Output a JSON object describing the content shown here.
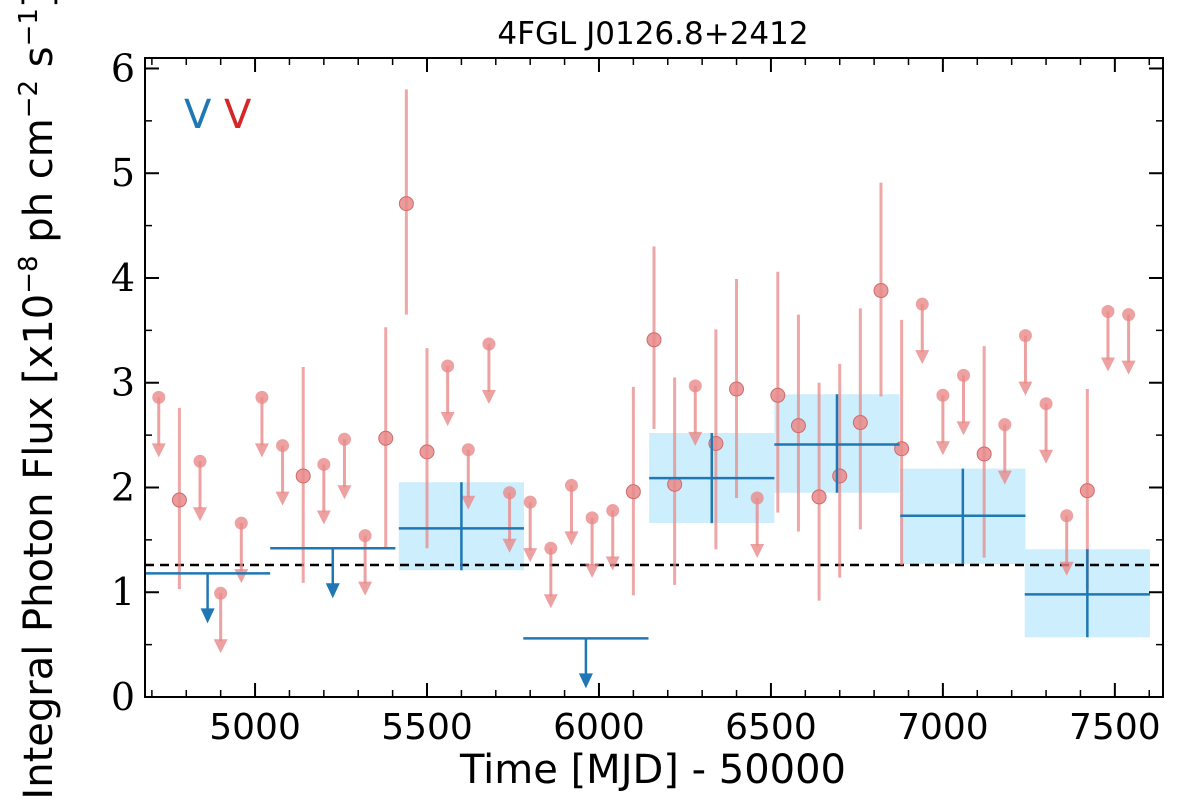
{
  "chart_data": {
    "type": "scatter",
    "title": "4FGL J0126.8+2412",
    "xlabel": "Time [MJD] - 50000",
    "ylabel": "Integral Photon Flux [x10^{-8} ph cm^{-2} s^{-1}]",
    "ylabel_main": "Integral Photon Flux [x10",
    "ylabel_exp1": "−8",
    "ylabel_mid": " ph cm",
    "ylabel_exp2": "−2",
    "ylabel_mid2": " s",
    "ylabel_exp3": "−1",
    "ylabel_end": "]",
    "xlim": [
      4680,
      7640
    ],
    "ylim": [
      0,
      6.1
    ],
    "x_ticks": [
      5000,
      5500,
      6000,
      6500,
      7000,
      7500
    ],
    "x_tick_labels": [
      "5000",
      "5500",
      "6000",
      "6500",
      "7000",
      "7500"
    ],
    "y_ticks": [
      0,
      1,
      2,
      3,
      4,
      5,
      6
    ],
    "y_tick_labels": [
      "0",
      "1",
      "2",
      "3",
      "4",
      "5",
      "6"
    ],
    "legend": {
      "placement": "top-left",
      "entries": [
        {
          "label": "V",
          "color": "#1f77b4"
        },
        {
          "label": "V",
          "color": "#d62728"
        }
      ]
    },
    "reference_line": {
      "y": 1.26,
      "style": "dashed",
      "color": "#000000"
    },
    "colors": {
      "wide_bins": "#1f77b4",
      "wide_band_fill": "#cdeefc",
      "narrow_bins": "#e88a8a"
    },
    "series": [
      {
        "bin_width": "wide",
        "points": [
          {
            "x": 4862,
            "x_half_width": 182,
            "upper_limit": 1.18
          },
          {
            "x": 5226,
            "x_half_width": 182,
            "upper_limit": 1.42
          },
          {
            "x": 5600,
            "x_half_width": 182,
            "y": 1.61,
            "y_low": 1.21,
            "y_high": 2.05
          },
          {
            "x": 5962,
            "x_half_width": 182,
            "upper_limit": 0.56
          },
          {
            "x": 6328,
            "x_half_width": 182,
            "y": 2.09,
            "y_low": 1.66,
            "y_high": 2.52
          },
          {
            "x": 6692,
            "x_half_width": 182,
            "y": 2.41,
            "y_low": 1.95,
            "y_high": 2.89
          },
          {
            "x": 7058,
            "x_half_width": 182,
            "y": 1.73,
            "y_low": 1.27,
            "y_high": 2.18
          },
          {
            "x": 7420,
            "x_half_width": 182,
            "y": 0.98,
            "y_low": 0.57,
            "y_high": 1.41
          }
        ]
      },
      {
        "bin_width": "narrow",
        "points": [
          {
            "x": 4720,
            "upper_limit": 2.86
          },
          {
            "x": 4780,
            "y": 1.88,
            "y_low": 1.03,
            "y_high": 2.76
          },
          {
            "x": 4840,
            "upper_limit": 2.25
          },
          {
            "x": 4900,
            "upper_limit": 0.99
          },
          {
            "x": 4960,
            "upper_limit": 1.66
          },
          {
            "x": 5020,
            "upper_limit": 2.86
          },
          {
            "x": 5080,
            "upper_limit": 2.4
          },
          {
            "x": 5140,
            "y": 2.11,
            "y_low": 1.09,
            "y_high": 3.15
          },
          {
            "x": 5200,
            "upper_limit": 2.22
          },
          {
            "x": 5260,
            "upper_limit": 2.46
          },
          {
            "x": 5320,
            "upper_limit": 1.54
          },
          {
            "x": 5380,
            "y": 2.47,
            "y_low": 1.41,
            "y_high": 3.53
          },
          {
            "x": 5440,
            "y": 4.71,
            "y_low": 3.65,
            "y_high": 5.8
          },
          {
            "x": 5500,
            "y": 2.34,
            "y_low": 1.42,
            "y_high": 3.33
          },
          {
            "x": 5560,
            "upper_limit": 3.16
          },
          {
            "x": 5620,
            "upper_limit": 2.36
          },
          {
            "x": 5680,
            "upper_limit": 3.37
          },
          {
            "x": 5740,
            "upper_limit": 1.95
          },
          {
            "x": 5800,
            "upper_limit": 1.86
          },
          {
            "x": 5860,
            "upper_limit": 1.42
          },
          {
            "x": 5920,
            "upper_limit": 2.02
          },
          {
            "x": 5980,
            "upper_limit": 1.71
          },
          {
            "x": 6040,
            "upper_limit": 1.78
          },
          {
            "x": 6100,
            "y": 1.96,
            "y_low": 0.97,
            "y_high": 2.96
          },
          {
            "x": 6160,
            "y": 3.41,
            "y_low": 2.56,
            "y_high": 4.3
          },
          {
            "x": 6220,
            "y": 2.03,
            "y_low": 1.07,
            "y_high": 3.05
          },
          {
            "x": 6280,
            "upper_limit": 2.97
          },
          {
            "x": 6340,
            "y": 2.42,
            "y_low": 1.41,
            "y_high": 3.51
          },
          {
            "x": 6400,
            "y": 2.94,
            "y_low": 1.9,
            "y_high": 3.99
          },
          {
            "x": 6460,
            "upper_limit": 1.9
          },
          {
            "x": 6520,
            "y": 2.88,
            "y_low": 1.76,
            "y_high": 4.06
          },
          {
            "x": 6580,
            "y": 2.59,
            "y_low": 1.58,
            "y_high": 3.65
          },
          {
            "x": 6640,
            "y": 1.91,
            "y_low": 0.92,
            "y_high": 3.0
          },
          {
            "x": 6700,
            "y": 2.11,
            "y_low": 1.14,
            "y_high": 3.18
          },
          {
            "x": 6760,
            "y": 2.62,
            "y_low": 1.6,
            "y_high": 3.71
          },
          {
            "x": 6820,
            "y": 3.88,
            "y_low": 2.87,
            "y_high": 4.91
          },
          {
            "x": 6880,
            "y": 2.37,
            "y_low": 1.26,
            "y_high": 3.6
          },
          {
            "x": 6940,
            "upper_limit": 3.75
          },
          {
            "x": 7000,
            "upper_limit": 2.88
          },
          {
            "x": 7060,
            "upper_limit": 3.07
          },
          {
            "x": 7120,
            "y": 2.32,
            "y_low": 1.33,
            "y_high": 3.35
          },
          {
            "x": 7180,
            "upper_limit": 2.6
          },
          {
            "x": 7240,
            "upper_limit": 3.45
          },
          {
            "x": 7300,
            "upper_limit": 2.8
          },
          {
            "x": 7360,
            "upper_limit": 1.73
          },
          {
            "x": 7420,
            "y": 1.97,
            "y_low": 1.03,
            "y_high": 2.94
          },
          {
            "x": 7480,
            "upper_limit": 3.68
          },
          {
            "x": 7540,
            "upper_limit": 3.65
          }
        ]
      }
    ]
  }
}
